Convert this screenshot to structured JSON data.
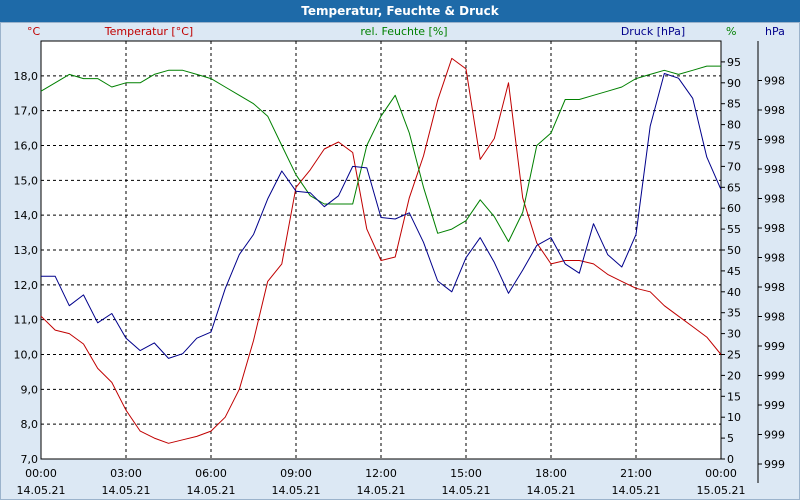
{
  "window": {
    "title": "Temperatur, Feuchte & Druck"
  },
  "chart_data": {
    "type": "line",
    "title": "Temperatur, Feuchte & Druck",
    "x_tick_times": [
      "00:00",
      "03:00",
      "06:00",
      "09:00",
      "12:00",
      "15:00",
      "18:00",
      "21:00",
      "00:00"
    ],
    "x_tick_dates": [
      "14.05.21",
      "14.05.21",
      "14.05.21",
      "14.05.21",
      "14.05.21",
      "14.05.21",
      "14.05.21",
      "14.05.21",
      "15.05.21"
    ],
    "xlim": [
      0,
      24
    ],
    "axes": {
      "temperature": {
        "label": "Temperatur [°C]",
        "unit": "°C",
        "color": "#c00000",
        "ylim": [
          7.0,
          19.0
        ],
        "ticks": [
          "7,0",
          "8,0",
          "9,0",
          "10,0",
          "11,0",
          "12,0",
          "13,0",
          "14,0",
          "15,0",
          "16,0",
          "17,0",
          "18,0"
        ]
      },
      "humidity": {
        "label": "rel. Feuchte [%]",
        "unit": "%",
        "color": "#008000",
        "ylim": [
          0,
          100
        ],
        "ticks": [
          "0",
          "5",
          "10",
          "15",
          "20",
          "25",
          "30",
          "35",
          "40",
          "45",
          "50",
          "55",
          "60",
          "65",
          "70",
          "75",
          "80",
          "85",
          "90",
          "95"
        ]
      },
      "pressure": {
        "label": "Druck [hPa]",
        "unit": "hPa",
        "color": "#00008b",
        "ylim": [
          997.2,
          999.9
        ],
        "ticks": [
          "998",
          "998",
          "998",
          "998",
          "998",
          "998",
          "998",
          "998",
          "998",
          "999",
          "999",
          "999",
          "999",
          "999"
        ]
      }
    },
    "series": [
      {
        "name": "Temperatur",
        "axis": "temperature",
        "x": [
          0,
          0.5,
          1,
          1.5,
          2,
          2.5,
          3,
          3.5,
          4,
          4.5,
          5,
          5.5,
          6,
          6.5,
          7,
          7.5,
          8,
          8.5,
          9,
          9.5,
          10,
          10.5,
          11,
          11.5,
          12,
          12.5,
          13,
          13.5,
          14,
          14.5,
          15,
          15.5,
          16,
          16.5,
          17,
          17.5,
          18,
          18.5,
          19,
          19.5,
          20,
          20.5,
          21,
          21.5,
          22,
          22.5,
          23,
          23.5,
          24
        ],
        "values": [
          11.1,
          10.7,
          10.6,
          10.3,
          9.6,
          9.2,
          8.4,
          7.8,
          7.6,
          7.45,
          7.55,
          7.65,
          7.8,
          8.2,
          9.0,
          10.4,
          12.1,
          12.6,
          14.8,
          15.3,
          15.9,
          16.1,
          15.8,
          13.6,
          12.7,
          12.8,
          14.5,
          15.7,
          17.3,
          18.5,
          18.2,
          15.6,
          16.2,
          17.8,
          14.5,
          13.2,
          12.6,
          12.7,
          12.7,
          12.6,
          12.3,
          12.1,
          11.9,
          11.8,
          11.4,
          11.1,
          10.8,
          10.5,
          10.0
        ]
      },
      {
        "name": "rel. Feuchte",
        "axis": "humidity",
        "x": [
          0,
          0.5,
          1,
          1.5,
          2,
          2.5,
          3,
          3.5,
          4,
          4.5,
          5,
          5.5,
          6,
          6.5,
          7,
          7.5,
          8,
          8.5,
          9,
          9.5,
          10,
          10.5,
          11,
          11.5,
          12,
          12.5,
          13,
          13.5,
          14,
          14.5,
          15,
          15.5,
          16,
          16.5,
          17,
          17.5,
          18,
          18.5,
          19,
          19.5,
          20,
          20.5,
          21,
          21.5,
          22,
          22.5,
          23,
          23.5,
          24
        ],
        "values": [
          88,
          90,
          92,
          91,
          91,
          89,
          90,
          90,
          92,
          93,
          93,
          92,
          91,
          89,
          87,
          85,
          82,
          75,
          68,
          63,
          61,
          61,
          61,
          75,
          82,
          87,
          78,
          65,
          54,
          55,
          57,
          62,
          58,
          52,
          59,
          75,
          78,
          86,
          86,
          87,
          88,
          89,
          91,
          92,
          93,
          92,
          93,
          94,
          94
        ]
      },
      {
        "name": "Druck",
        "axis": "pressure",
        "x": [
          0,
          0.5,
          1,
          1.5,
          2,
          2.5,
          3,
          3.5,
          4,
          4.5,
          5,
          5.5,
          6,
          6.5,
          7,
          7.5,
          8,
          8.5,
          9,
          9.5,
          10,
          10.5,
          11,
          11.5,
          12,
          12.5,
          13,
          13.5,
          14,
          14.5,
          15,
          15.5,
          16,
          16.5,
          17,
          17.5,
          18,
          18.5,
          19,
          19.5,
          20,
          20.5,
          21,
          21.5,
          22,
          22.5,
          23,
          23.5,
          24
        ],
        "values": [
          998.38,
          998.38,
          998.19,
          998.26,
          998.08,
          998.14,
          997.98,
          997.9,
          997.95,
          997.85,
          997.88,
          997.98,
          998.02,
          998.3,
          998.52,
          998.65,
          998.88,
          999.06,
          998.93,
          998.92,
          998.83,
          998.9,
          999.09,
          999.08,
          998.76,
          998.75,
          998.79,
          998.6,
          998.35,
          998.28,
          998.5,
          998.63,
          998.47,
          998.27,
          998.42,
          998.58,
          998.63,
          998.46,
          998.4,
          998.72,
          998.52,
          998.44,
          998.65,
          999.35,
          999.69,
          999.66,
          999.53,
          999.15,
          998.94
        ]
      }
    ],
    "grid": true
  }
}
